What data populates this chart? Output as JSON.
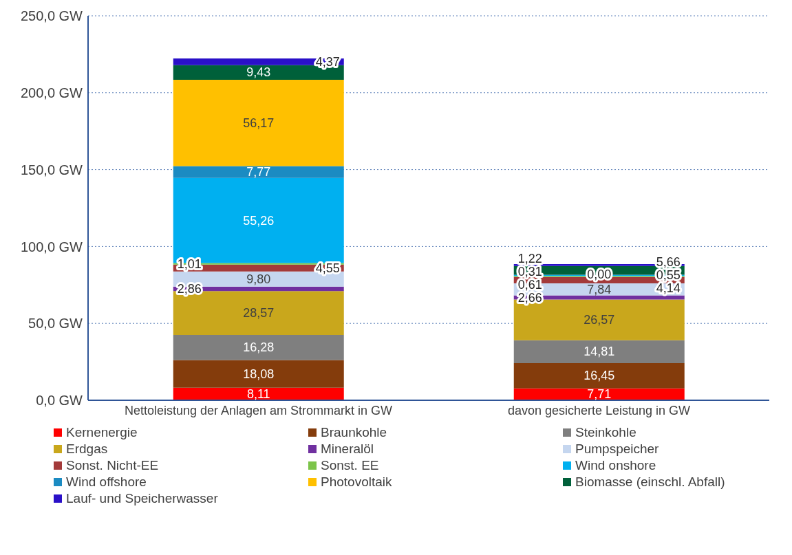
{
  "chart_data": {
    "type": "bar",
    "stacked": true,
    "categories": [
      "Nettoleistung der Anlagen am Strommarkt in GW",
      "davon gesicherte Leistung in GW"
    ],
    "ylim": [
      0,
      250
    ],
    "yticks": [
      {
        "value": 0,
        "label": "0,0 GW"
      },
      {
        "value": 50,
        "label": "50,0 GW"
      },
      {
        "value": 100,
        "label": "100,0 GW"
      },
      {
        "value": 150,
        "label": "150,0 GW"
      },
      {
        "value": 200,
        "label": "200,0 GW"
      },
      {
        "value": 250,
        "label": "250,0 GW"
      }
    ],
    "grid": "y",
    "legend": "bottom",
    "series": [
      {
        "name": "Kernenergie",
        "color": "#ff0000",
        "values": [
          8.11,
          7.71
        ],
        "value_labels": [
          "8,11",
          "7,71"
        ]
      },
      {
        "name": "Braunkohle",
        "color": "#843c0c",
        "values": [
          18.08,
          16.45
        ],
        "value_labels": [
          "18,08",
          "16,45"
        ]
      },
      {
        "name": "Steinkohle",
        "color": "#7f7f7f",
        "values": [
          16.28,
          14.81
        ],
        "value_labels": [
          "16,28",
          "14,81"
        ]
      },
      {
        "name": "Erdgas",
        "color": "#c9a71c",
        "values": [
          28.57,
          26.57
        ],
        "value_labels": [
          "28,57",
          "26,57"
        ]
      },
      {
        "name": "Mineralöl",
        "color": "#7030a0",
        "values": [
          2.86,
          2.66
        ],
        "value_labels": [
          "2,86",
          "2,66"
        ]
      },
      {
        "name": "Pumpspeicher",
        "color": "#c5d6ef",
        "values": [
          9.8,
          7.84
        ],
        "value_labels": [
          "9,80",
          "7,84"
        ]
      },
      {
        "name": "Sonst. Nicht-EE",
        "color": "#a33a3a",
        "values": [
          4.55,
          4.14
        ],
        "value_labels": [
          "4,55",
          "4,14"
        ]
      },
      {
        "name": "Sonst. EE",
        "color": "#7cc44a",
        "values": [
          1.01,
          0.61
        ],
        "value_labels": [
          "1,01",
          "0,61"
        ]
      },
      {
        "name": "Wind onshore",
        "color": "#00b0f0",
        "values": [
          55.26,
          0.55
        ],
        "value_labels": [
          "55,26",
          "0,55"
        ]
      },
      {
        "name": "Wind offshore",
        "color": "#1b8bc2",
        "values": [
          7.77,
          0.31
        ],
        "value_labels": [
          "7,77",
          "0,31"
        ]
      },
      {
        "name": "Photovoltaik",
        "color": "#ffc000",
        "values": [
          56.17,
          0.0
        ],
        "value_labels": [
          "56,17",
          "0,00"
        ]
      },
      {
        "name": "Biomasse (einschl. Abfall)",
        "color": "#00603a",
        "values": [
          9.43,
          5.66
        ],
        "value_labels": [
          "9,43",
          "5,66"
        ]
      },
      {
        "name": "Lauf- und Speicherwasser",
        "color": "#2a10c8",
        "values": [
          4.37,
          1.22
        ],
        "value_labels": [
          "4,37",
          "1,22"
        ]
      }
    ]
  }
}
